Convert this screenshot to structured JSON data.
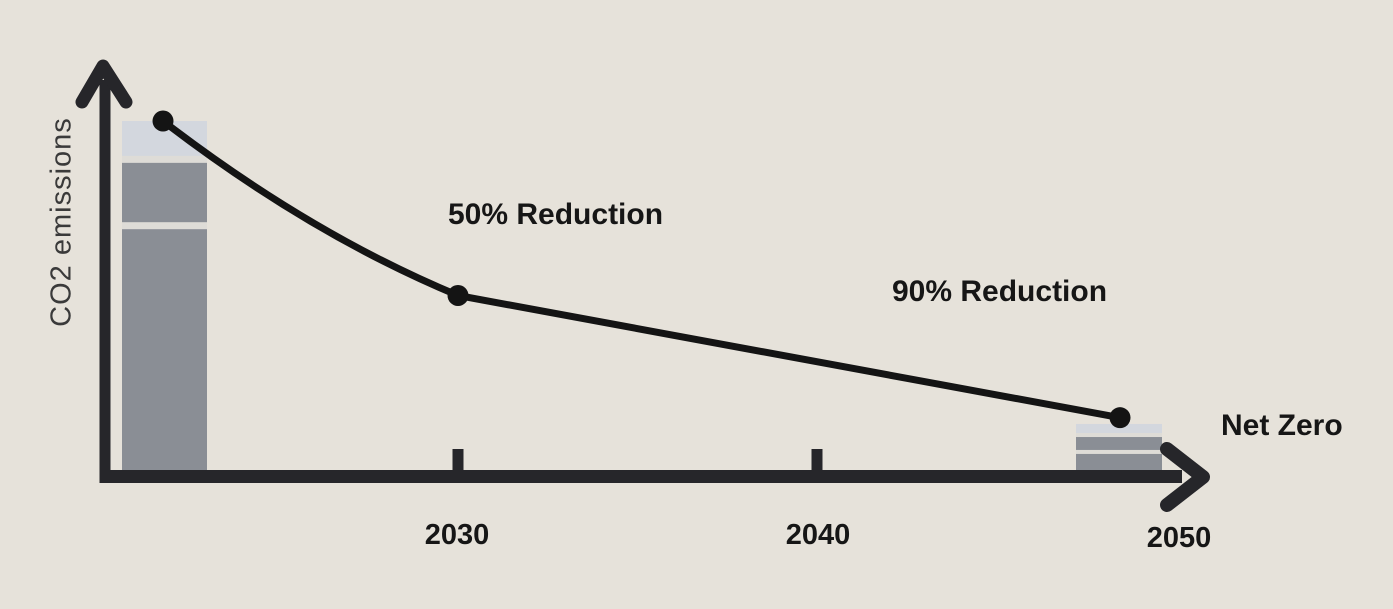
{
  "colors": {
    "background": "#e6e2da",
    "axis": "#26262a",
    "line": "#141414",
    "dot": "#141414",
    "text": "#161616",
    "ylabel_text": "#3a3a3a",
    "bar_gray": "#8a8e95",
    "bar_light": "#d3d7de",
    "bar_backing": "#dedcd7"
  },
  "chart_data": {
    "type": "line",
    "title": "",
    "ylabel": "CO2 emissions",
    "xlabel": "",
    "x_tick_labels": [
      "2030",
      "2040",
      "2050"
    ],
    "grid": false,
    "legend": false,
    "series": [
      {
        "name": "co2-emissions-pathway",
        "points": [
          {
            "x": "start",
            "emissions_pct": 100
          },
          {
            "x": "2030",
            "emissions_pct": 50
          },
          {
            "x": "2050",
            "emissions_pct": 15
          }
        ]
      }
    ],
    "annotations": [
      {
        "text": "50% Reduction",
        "near": "2030"
      },
      {
        "text": "90% Reduction",
        "near": "2040"
      },
      {
        "text": "Net Zero",
        "near": "2050"
      }
    ],
    "bars": [
      {
        "name": "current-emissions-bar",
        "at_x": "start",
        "total_pct": 100,
        "segments_bottom_to_top": [
          {
            "pct": 69,
            "tone": "gray"
          },
          {
            "pct": 17,
            "tone": "gray"
          },
          {
            "pct": 10,
            "tone": "light"
          }
        ]
      },
      {
        "name": "residual-emissions-bar",
        "at_x": "2050",
        "total_pct": 14,
        "segments_bottom_to_top": [
          {
            "pct": 4.6,
            "tone": "gray"
          },
          {
            "pct": 3.7,
            "tone": "gray"
          },
          {
            "pct": 2.6,
            "tone": "light"
          }
        ]
      }
    ]
  }
}
